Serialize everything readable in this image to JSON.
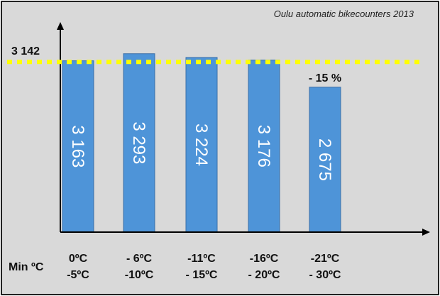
{
  "chart_data": {
    "type": "bar",
    "title": "Oulu automatic bikecounters 2013",
    "xlabel": "Min ºC",
    "ylabel": "",
    "categories": [
      [
        "0ºC",
        "-5ºC"
      ],
      [
        "- 6ºC",
        "-10ºC"
      ],
      [
        "-11ºC",
        "- 15ºC"
      ],
      [
        "-16ºC",
        "- 20ºC"
      ],
      [
        "-21ºC",
        "- 30ºC"
      ]
    ],
    "values": [
      3163,
      3293,
      3224,
      3176,
      2675
    ],
    "value_labels": [
      "3 163",
      "3 293",
      "3 224",
      "3 176",
      "2 675"
    ],
    "reference_line": {
      "value": 3142,
      "label": "3 142",
      "color": "#ffff00",
      "style": "dotted"
    },
    "annotation": {
      "text": "- 15 %",
      "category_index": 4
    },
    "ylim": [
      0,
      3800
    ],
    "grid": false,
    "bar_color": "#4e94d8",
    "background_color": "#d9d9d9"
  }
}
